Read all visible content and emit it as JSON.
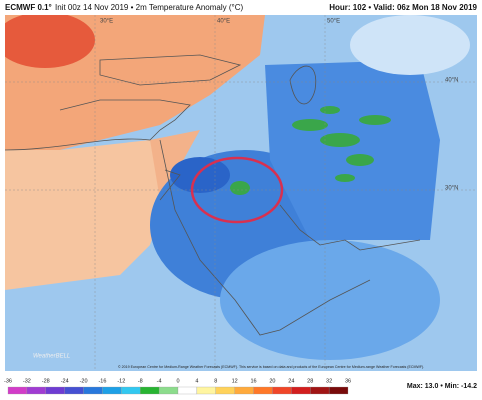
{
  "header": {
    "model": "ECMWF 0.1°",
    "run": "Init 00z 14 Nov 2019 • 2m Temperature Anomaly (°C)",
    "valid": "Hour: 102 • Valid: 06z Mon 18 Nov 2019"
  },
  "map": {
    "lon_labels": [
      "30°E",
      "40°E",
      "50°E"
    ],
    "lat_labels": [
      "40°N",
      "30°N"
    ],
    "logo": "WeatherBELL",
    "credit": "© 2019 European Centre for Medium-Range Weather Forecasts (ECMWF). This service is based on data and products of the European Centre for Medium-range Weather Forecasts (ECMWF)."
  },
  "colorbar": {
    "ticks": [
      -36,
      -32,
      -28,
      -24,
      -20,
      -16,
      -12,
      -8,
      -4,
      0,
      4,
      8,
      12,
      16,
      20,
      24,
      28,
      32,
      36
    ],
    "colors": [
      "#d23cc8",
      "#a03cd2",
      "#6e3cd2",
      "#4650d2",
      "#2878dc",
      "#1ea0e6",
      "#32c8f0",
      "#28b432",
      "#8cdc8c",
      "#ffffff",
      "#fff5a0",
      "#ffd25a",
      "#ffaa3c",
      "#ff7828",
      "#f04628",
      "#d21e1e",
      "#a01414",
      "#780a0a"
    ],
    "stats": "Max: 13.0 • Min: -14.2"
  }
}
